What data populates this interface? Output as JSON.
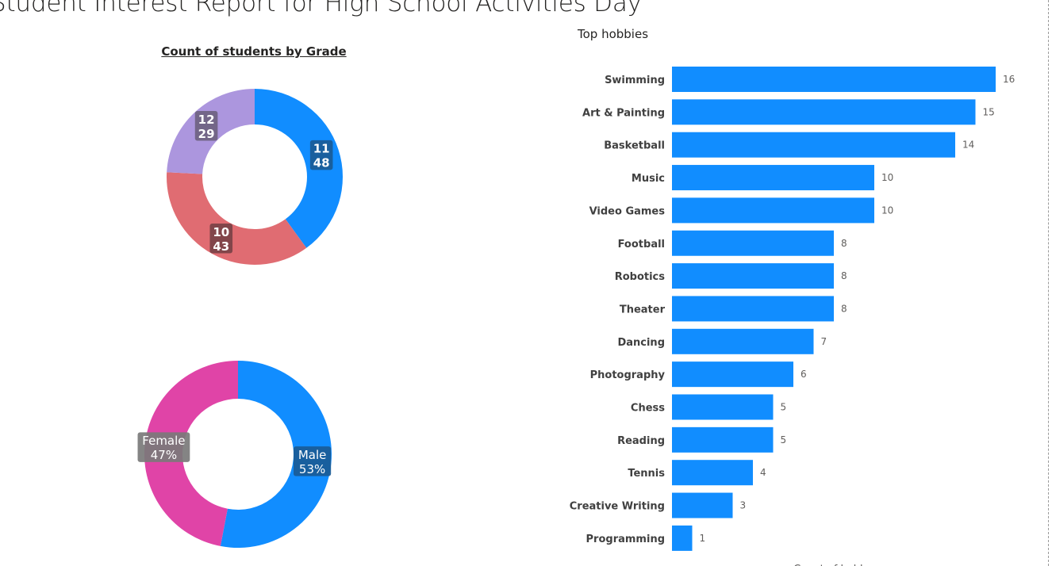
{
  "page": {
    "title": "Student Interest Report for High School Activities Day"
  },
  "chart_data": [
    {
      "id": "grade",
      "type": "pie",
      "variant": "donut",
      "title": "Count of students by Grade",
      "categories": [
        "11",
        "10",
        "12"
      ],
      "values": [
        48,
        43,
        29
      ],
      "colors": [
        "#118DFF",
        "#E06C72",
        "#AC96DE"
      ],
      "label_bg": [
        "#1a5b96",
        "#7a4247",
        "#6e6280"
      ],
      "labels": [
        {
          "line1": "11",
          "line2": "48"
        },
        {
          "line1": "10",
          "line2": "43"
        },
        {
          "line1": "12",
          "line2": "29"
        }
      ]
    },
    {
      "id": "gender",
      "type": "pie",
      "variant": "donut",
      "title": "",
      "categories": [
        "Male",
        "Female"
      ],
      "values": [
        53,
        47
      ],
      "colors": [
        "#118DFF",
        "#E044A7"
      ],
      "label_bg": [
        "#1a5b96",
        "#7a7a7a"
      ],
      "labels": [
        {
          "line1": "Male",
          "line2": "53%"
        },
        {
          "line1": "Female",
          "line2": "47%"
        }
      ]
    },
    {
      "id": "hobbies",
      "type": "bar",
      "orientation": "horizontal",
      "title": "Top hobbies",
      "xlabel": "Count of hobby",
      "color": "#118DFF",
      "categories": [
        "Swimming",
        "Art & Painting",
        "Basketball",
        "Music",
        "Video Games",
        "Football",
        "Robotics",
        "Theater",
        "Dancing",
        "Photography",
        "Chess",
        "Reading",
        "Tennis",
        "Creative Writing",
        "Programming"
      ],
      "values": [
        16,
        15,
        14,
        10,
        10,
        8,
        8,
        8,
        7,
        6,
        5,
        5,
        4,
        3,
        1
      ],
      "xlim": [
        0,
        16
      ]
    }
  ]
}
